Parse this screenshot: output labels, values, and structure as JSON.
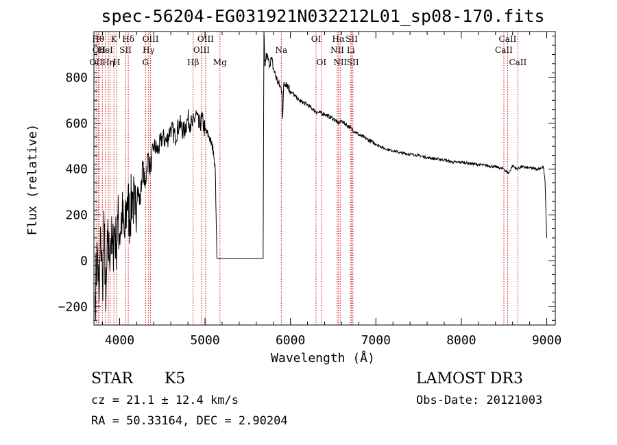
{
  "chart_data": {
    "type": "line",
    "title": "spec-56204-EG031921N032212L01_sp08-170.fits",
    "xlabel": "Wavelength (Å)",
    "ylabel": "Flux (relative)",
    "xlim": [
      3700,
      9100
    ],
    "ylim": [
      -280,
      1000
    ],
    "xticks": [
      4000,
      5000,
      6000,
      7000,
      8000,
      9000
    ],
    "yticks": [
      -200,
      0,
      200,
      400,
      600,
      800
    ],
    "xtick_labels": [
      "4000",
      "5000",
      "6000",
      "7000",
      "8000",
      "9000"
    ],
    "ytick_labels": [
      "−200",
      "0",
      "200",
      "400",
      "600",
      "800"
    ],
    "series": [
      {
        "name": "spectrum",
        "x": [
          3715,
          3740,
          3760,
          3780,
          3800,
          3820,
          3840,
          3860,
          3880,
          3900,
          3920,
          3940,
          3960,
          3980,
          4000,
          4030,
          4060,
          4090,
          4120,
          4150,
          4180,
          4210,
          4240,
          4270,
          4300,
          4330,
          4360,
          4400,
          4450,
          4500,
          4550,
          4600,
          4650,
          4700,
          4750,
          4800,
          4850,
          4900,
          4930,
          4960,
          5000,
          5050,
          5100,
          5120,
          5130,
          5140,
          5300,
          5500,
          5680,
          5690,
          5700,
          5720,
          5750,
          5780,
          5800,
          5850,
          5880,
          5900,
          5910,
          5920,
          5950,
          6000,
          6050,
          6100,
          6200,
          6300,
          6400,
          6500,
          6563,
          6600,
          6700,
          6800,
          6900,
          7000,
          7100,
          7200,
          7300,
          7400,
          7500,
          7600,
          7700,
          7800,
          7900,
          8000,
          8100,
          8200,
          8300,
          8400,
          8500,
          8550,
          8600,
          8650,
          8700,
          8800,
          8900,
          8960,
          8980,
          9000
        ],
        "y": [
          -150,
          50,
          -180,
          120,
          -100,
          150,
          -220,
          80,
          20,
          100,
          30,
          150,
          60,
          180,
          120,
          200,
          100,
          280,
          180,
          300,
          200,
          320,
          250,
          420,
          320,
          460,
          400,
          500,
          480,
          540,
          520,
          580,
          540,
          600,
          560,
          620,
          590,
          640,
          580,
          620,
          570,
          540,
          480,
          400,
          200,
          10,
          10,
          10,
          10,
          1000,
          850,
          900,
          860,
          880,
          840,
          780,
          760,
          740,
          620,
          760,
          780,
          740,
          720,
          700,
          680,
          650,
          640,
          620,
          600,
          610,
          580,
          550,
          530,
          510,
          490,
          480,
          470,
          465,
          460,
          450,
          445,
          440,
          430,
          430,
          425,
          420,
          415,
          410,
          400,
          380,
          415,
          400,
          410,
          405,
          400,
          410,
          350,
          100
        ]
      }
    ],
    "lines": [
      {
        "wl": 3726,
        "row": 2,
        "label": "OII"
      },
      {
        "wl": 3750,
        "row": 0,
        "label": "Hθ"
      },
      {
        "wl": 3760,
        "row": 1,
        "label": "OII"
      },
      {
        "wl": 3798,
        "row": 0,
        "label": ""
      },
      {
        "wl": 3835,
        "row": 1,
        "label": "HeI"
      },
      {
        "wl": 3869,
        "row": 2,
        "label": "Hη"
      },
      {
        "wl": 3889,
        "row": 0,
        "label": ""
      },
      {
        "wl": 3934,
        "row": 0,
        "label": "K"
      },
      {
        "wl": 3968,
        "row": 2,
        "label": "H"
      },
      {
        "wl": 4070,
        "row": 1,
        "label": "SII"
      },
      {
        "wl": 4102,
        "row": 0,
        "label": "Hδ"
      },
      {
        "wl": 4304,
        "row": 2,
        "label": "G"
      },
      {
        "wl": 4340,
        "row": 1,
        "label": "Hγ"
      },
      {
        "wl": 4363,
        "row": 0,
        "label": "OIII"
      },
      {
        "wl": 4861,
        "row": 2,
        "label": "Hβ"
      },
      {
        "wl": 4959,
        "row": 1,
        "label": "OIII"
      },
      {
        "wl": 5007,
        "row": 0,
        "label": "OIII"
      },
      {
        "wl": 5175,
        "row": 2,
        "label": "Mg"
      },
      {
        "wl": 5893,
        "row": 1,
        "label": "Na"
      },
      {
        "wl": 6300,
        "row": 0,
        "label": "OI"
      },
      {
        "wl": 6363,
        "row": 2,
        "label": "OI"
      },
      {
        "wl": 6548,
        "row": 1,
        "label": "NII"
      },
      {
        "wl": 6563,
        "row": 0,
        "label": "Hα"
      },
      {
        "wl": 6583,
        "row": 2,
        "label": "NII"
      },
      {
        "wl": 6707,
        "row": 1,
        "label": "Li"
      },
      {
        "wl": 6717,
        "row": 0,
        "label": "SII"
      },
      {
        "wl": 6731,
        "row": 2,
        "label": "SII"
      },
      {
        "wl": 8498,
        "row": 1,
        "label": "CaII"
      },
      {
        "wl": 8542,
        "row": 0,
        "label": "CaII"
      },
      {
        "wl": 8662,
        "row": 2,
        "label": "CaII"
      }
    ]
  },
  "info": {
    "class": "STAR",
    "subclass": "K5",
    "survey": "LAMOST DR3",
    "cz": "cz = 21.1 ± 12.4 km/s",
    "obs_date": "Obs-Date: 20121003",
    "radec": "RA =  50.33164, DEC =   2.90204"
  },
  "colors": {
    "spectrum": "#000000",
    "line_marker": "#cc0000",
    "axes": "#000000"
  }
}
